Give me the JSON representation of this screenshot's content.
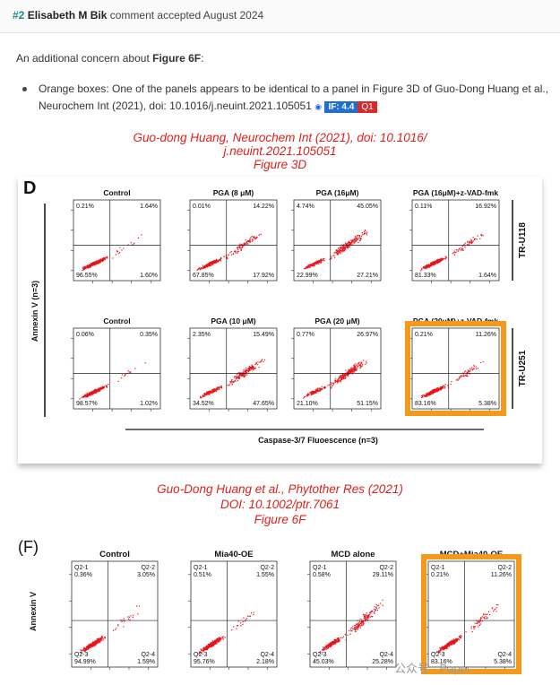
{
  "header": {
    "number": "#2",
    "author": "Elisabeth M Bik",
    "status": "comment accepted August 2024"
  },
  "comment": {
    "intro_prefix": "An additional concern about ",
    "intro_bold": "Figure 6F",
    "intro_suffix": ":",
    "bullet_line1": "Orange boxes: One of the panels appears to be identical to a panel in Figure 3D of Guo-Dong Huang et al.,",
    "bullet_line2": "Neurochem Int (2021), doi: 10.1016/j.neuint.2021.105051",
    "badge_if": "IF: 4.4",
    "badge_q": "Q1"
  },
  "citation1": {
    "line1": "Guo-dong Huang, Neurochem Int (2021), doi: 10.1016/",
    "line2": "j.neuint.2021.105051",
    "line3": "Figure 3D"
  },
  "figD": {
    "letter": "D",
    "ylabel": "Annexin V",
    "ylabel_n": "(n=3)",
    "xlabel": "Caspase-3/7 Fluoescence",
    "xlabel_n": "(n=3)",
    "row_labels": [
      "TR-U118",
      "TR-U251"
    ],
    "panels": [
      {
        "title": "Control",
        "q1": "0.21%",
        "q2": "1.64%",
        "q3": "96.55%",
        "q4": "1.60%",
        "highlight": false
      },
      {
        "title": "PGA  (8 μM)",
        "q1": "0.01%",
        "q2": "14.22%",
        "q3": "67.85%",
        "q4": "17.92%",
        "highlight": false
      },
      {
        "title": "PGA  (16μM)",
        "q1": "4.74%",
        "q2": "45.05%",
        "q3": "22.99%",
        "q4": "27.21%",
        "highlight": false
      },
      {
        "title": "PGA  (16μM)+z-VAD-fmk",
        "q1": "0.11%",
        "q2": "16.92%",
        "q3": "81.33%",
        "q4": "1.64%",
        "highlight": false
      },
      {
        "title": "Control",
        "q1": "0.06%",
        "q2": "0.35%",
        "q3": "98.57%",
        "q4": "1.02%",
        "highlight": false
      },
      {
        "title": "PGA  (10 μM)",
        "q1": "2.35%",
        "q2": "15.49%",
        "q3": "34.52%",
        "q4": "47.65%",
        "highlight": false
      },
      {
        "title": "PGA  (20 μM)",
        "q1": "0.77%",
        "q2": "26.97%",
        "q3": "21.10%",
        "q4": "51.15%",
        "highlight": false
      },
      {
        "title": "PGA  (20μM)+z-VAD-fmk",
        "q1": "0.21%",
        "q2": "11.26%",
        "q3": "83.16%",
        "q4": "5.38%",
        "highlight": true
      }
    ]
  },
  "citation2": {
    "line1": "Guo-Dong Huang et al., Phytother Res (2021)",
    "line2": "DOI: 10.1002/ptr.7061",
    "line3": "Figure 6F"
  },
  "figF": {
    "letter": "(F)",
    "ylabel": "Annexin V",
    "panels": [
      {
        "title": "Control",
        "q1": "Q2-1\n0.36%",
        "q2": "Q2-2\n3.05%",
        "q3": "Q2-3\n94.99%",
        "q4": "Q2-4\n1.59%",
        "highlight": false
      },
      {
        "title": "Mia40-OE",
        "q1": "Q2-1\n0.51%",
        "q2": "Q2-2\n1.55%",
        "q3": "Q2-3\n95.76%",
        "q4": "Q2-4\n2.18%",
        "highlight": false
      },
      {
        "title": "MCD alone",
        "q1": "Q2-1\n0.58%",
        "q2": "Q2-2\n29.11%",
        "q3": "Q2-3\n45.03%",
        "q4": "Q2-4\n25.28%",
        "highlight": false
      },
      {
        "title": "MCD+Mia40-OE",
        "q1": "Q2-1\n0.21%",
        "q2": "Q2-2\n11.26%",
        "q3": "Q2-3\n83.16%",
        "q4": "Q2-4\n5.38%",
        "highlight": true
      }
    ]
  },
  "watermark": "公众号 · Paper",
  "colors": {
    "highlight": "#f39a1a",
    "dots": "#e8141c",
    "citation": "#e0201c",
    "if_badge": "#1f6fd1",
    "q_badge": "#d62b2b"
  }
}
